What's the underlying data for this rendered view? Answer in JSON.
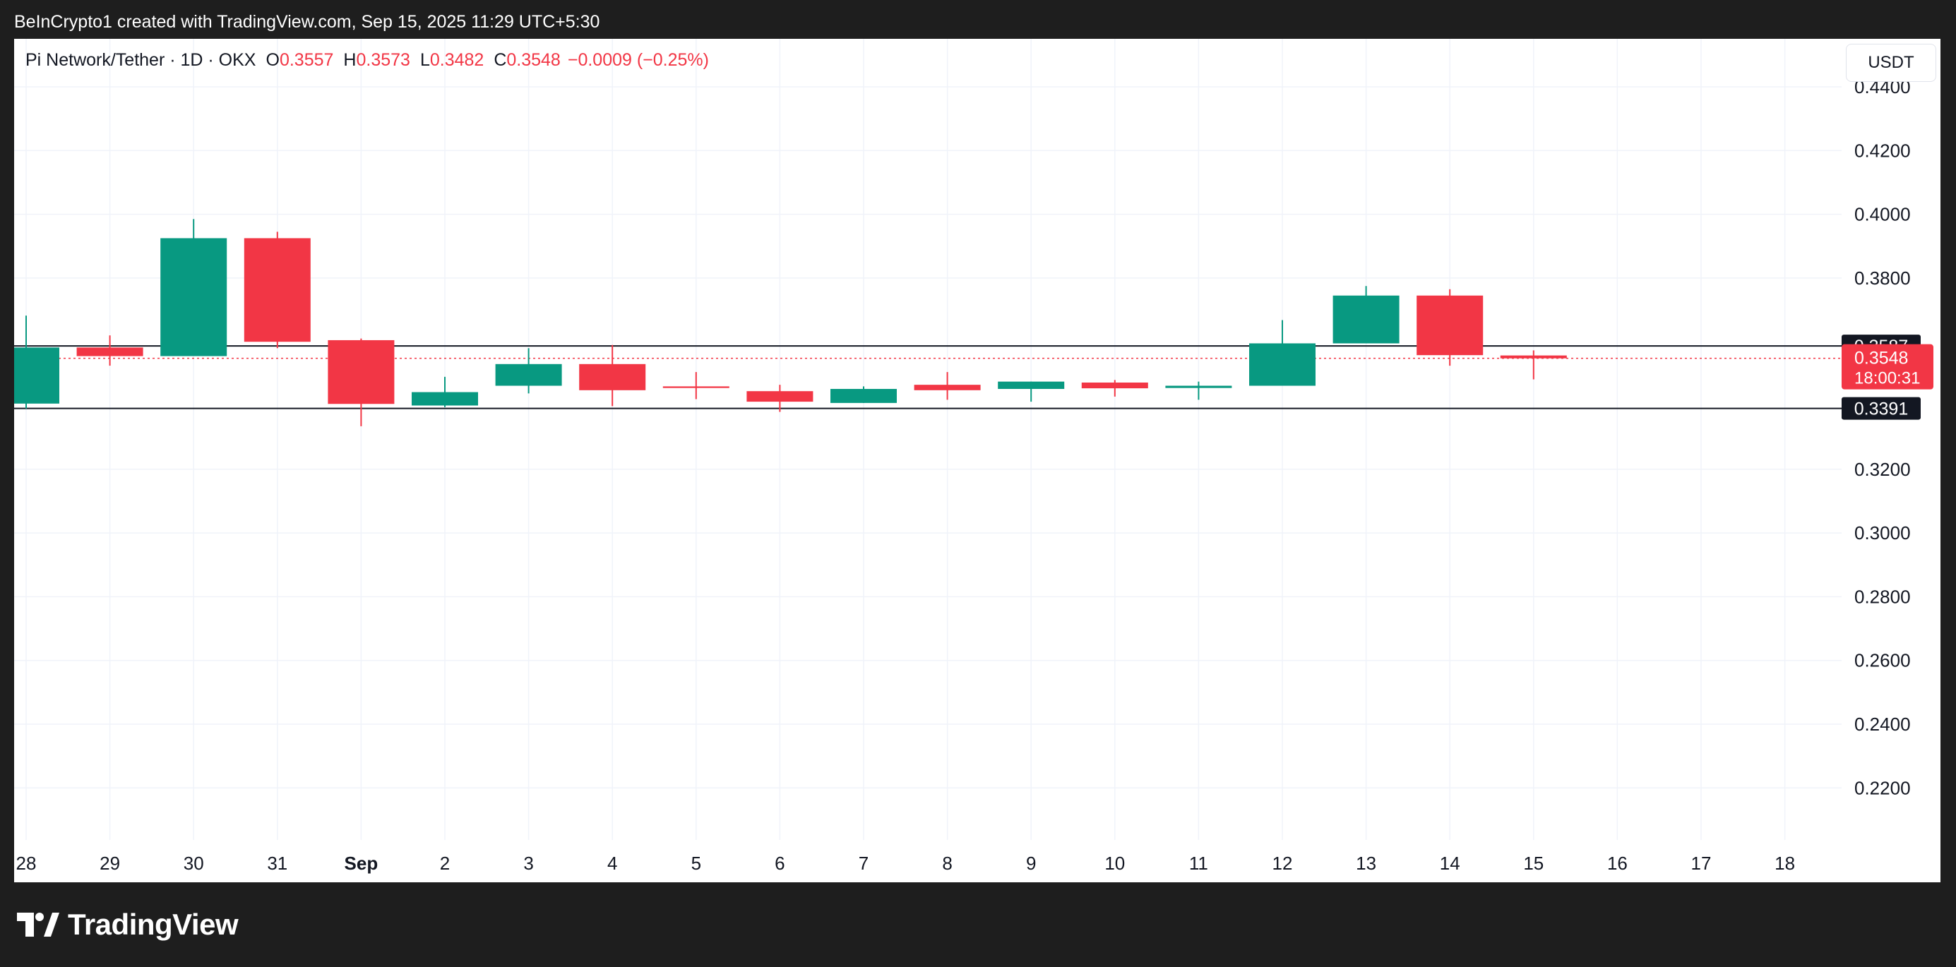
{
  "caption": "BeInCrypto1 created with TradingView.com, Sep 15, 2025 11:29 UTC+5:30",
  "legend": {
    "symbol": "Pi Network/Tether · 1D · OKX",
    "open_label": "O",
    "open_value": "0.3557",
    "high_label": "H",
    "high_value": "0.3573",
    "low_label": "L",
    "low_value": "0.3482",
    "close_label": "C",
    "close_value": "0.3548",
    "change": "−0.0009 (−0.25%)"
  },
  "currency": "USDT",
  "footer": {
    "brand": "TradingView"
  },
  "colors": {
    "up": "#089981",
    "down": "#f23645",
    "grid": "#f0f3fa",
    "level": "#131722",
    "axis_text": "#131722"
  },
  "chart_data": {
    "type": "candlestick",
    "x_ticks": [
      "28",
      "29",
      "30",
      "31",
      "Sep",
      "2",
      "3",
      "4",
      "5",
      "6",
      "7",
      "8",
      "9",
      "10",
      "11",
      "12",
      "13",
      "14",
      "15",
      "16",
      "17",
      "18"
    ],
    "y_ticks": [
      "0.4400",
      "0.4200",
      "0.4000",
      "0.3800",
      "0.3200",
      "0.3000",
      "0.2800",
      "0.2600",
      "0.2400",
      "0.2200"
    ],
    "ylim": [
      0.2,
      0.45
    ],
    "candles": [
      {
        "x": "28",
        "open": 0.3406,
        "high": 0.3682,
        "low": 0.339,
        "close": 0.3582
      },
      {
        "x": "29",
        "open": 0.3582,
        "high": 0.362,
        "low": 0.3525,
        "close": 0.3555
      },
      {
        "x": "30",
        "open": 0.3555,
        "high": 0.3985,
        "low": 0.3555,
        "close": 0.3925
      },
      {
        "x": "31",
        "open": 0.3925,
        "high": 0.3945,
        "low": 0.358,
        "close": 0.36
      },
      {
        "x": "Sep",
        "open": 0.3605,
        "high": 0.361,
        "low": 0.3335,
        "close": 0.3405
      },
      {
        "x": "2",
        "open": 0.34,
        "high": 0.349,
        "low": 0.3395,
        "close": 0.3442
      },
      {
        "x": "3",
        "open": 0.3462,
        "high": 0.358,
        "low": 0.3438,
        "close": 0.353
      },
      {
        "x": "4",
        "open": 0.353,
        "high": 0.359,
        "low": 0.3398,
        "close": 0.3448
      },
      {
        "x": "5",
        "open": 0.346,
        "high": 0.3505,
        "low": 0.342,
        "close": 0.3455
      },
      {
        "x": "6",
        "open": 0.3445,
        "high": 0.3465,
        "low": 0.338,
        "close": 0.3412
      },
      {
        "x": "7",
        "open": 0.3408,
        "high": 0.346,
        "low": 0.3408,
        "close": 0.3452
      },
      {
        "x": "8",
        "open": 0.3465,
        "high": 0.3505,
        "low": 0.3418,
        "close": 0.3448
      },
      {
        "x": "9",
        "open": 0.3452,
        "high": 0.3475,
        "low": 0.3412,
        "close": 0.3475
      },
      {
        "x": "10",
        "open": 0.3472,
        "high": 0.348,
        "low": 0.3428,
        "close": 0.3454
      },
      {
        "x": "11",
        "open": 0.3455,
        "high": 0.3475,
        "low": 0.3418,
        "close": 0.3462
      },
      {
        "x": "12",
        "open": 0.3462,
        "high": 0.3668,
        "low": 0.3462,
        "close": 0.3595
      },
      {
        "x": "13",
        "open": 0.3595,
        "high": 0.3775,
        "low": 0.3595,
        "close": 0.3745
      },
      {
        "x": "14",
        "open": 0.3745,
        "high": 0.3765,
        "low": 0.3525,
        "close": 0.3558
      },
      {
        "x": "15",
        "open": 0.3557,
        "high": 0.3573,
        "low": 0.3482,
        "close": 0.3548
      }
    ],
    "horizontal_levels": [
      {
        "value": 0.3587,
        "label": "0.3587"
      },
      {
        "value": 0.3391,
        "label": "0.3391"
      }
    ],
    "last_price": {
      "value": 0.3548,
      "label": "0.3548",
      "countdown": "18:00:31"
    }
  }
}
